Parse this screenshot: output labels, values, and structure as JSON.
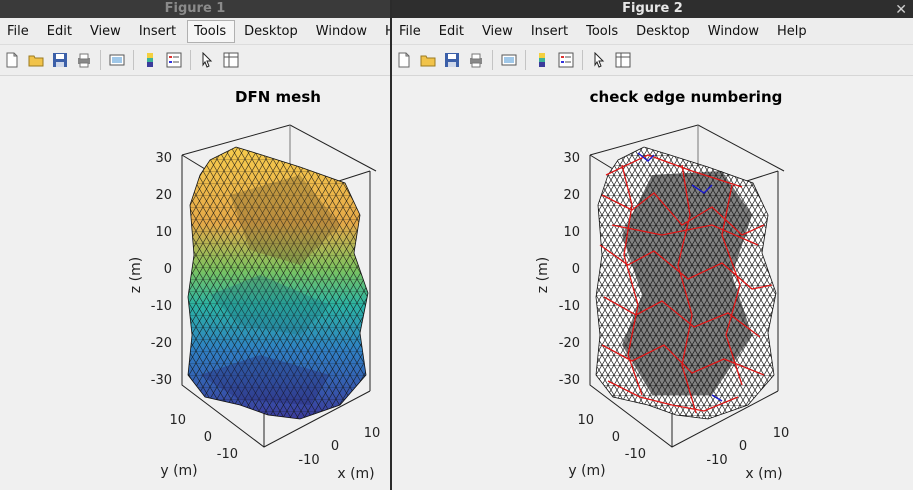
{
  "figure1": {
    "title": "Figure 1",
    "menus": [
      "File",
      "Edit",
      "View",
      "Insert",
      "Tools",
      "Desktop",
      "Window",
      "Help"
    ],
    "active_menu": "Tools",
    "plot": {
      "title": "DFN mesh",
      "zlabel": "z (m)",
      "ylabel": "y (m)",
      "xlabel": "x (m)",
      "z_ticks": [
        "30",
        "20",
        "10",
        "0",
        "-10",
        "-20",
        "-30"
      ],
      "y_ticks": [
        "10",
        "0",
        "-10"
      ],
      "x_ticks": [
        "-10",
        "0",
        "10"
      ]
    }
  },
  "figure2": {
    "title": "Figure 2",
    "menus": [
      "File",
      "Edit",
      "View",
      "Insert",
      "Tools",
      "Desktop",
      "Window",
      "Help"
    ],
    "plot": {
      "title": "check edge numbering",
      "zlabel": "z (m)",
      "ylabel": "y (m)",
      "xlabel": "x (m)",
      "z_ticks": [
        "30",
        "20",
        "10",
        "0",
        "-10",
        "-20",
        "-30"
      ],
      "y_ticks": [
        "10",
        "0",
        "-10"
      ],
      "x_ticks": [
        "-10",
        "0",
        "10"
      ]
    }
  },
  "colors": {
    "mesh_top": "#f4c64a",
    "mesh_mid": "#3db39a",
    "mesh_bottom": "#3b3b9b",
    "edge_red": "#e01818",
    "edge_blue": "#1a1ad0"
  }
}
